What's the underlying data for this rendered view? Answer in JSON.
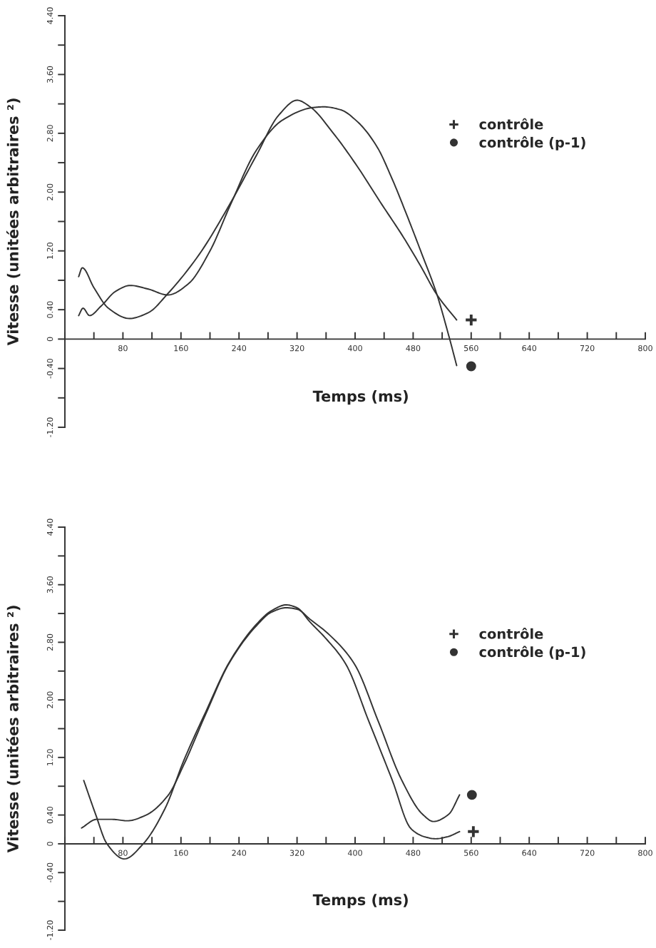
{
  "chart_data": [
    {
      "type": "line",
      "xlabel": "Temps (ms)",
      "ylabel": "Vitesse (unitées arbitraires ²)",
      "xlim": [
        0,
        800
      ],
      "ylim": [
        -1.2,
        4.4
      ],
      "xticks": [
        {
          "value": 0,
          "label": null
        },
        {
          "value": 40,
          "label": null
        },
        80,
        {
          "value": 120,
          "label": null
        },
        160,
        {
          "value": 200,
          "label": null
        },
        240,
        {
          "value": 280,
          "label": null
        },
        320,
        {
          "value": 360,
          "label": null
        },
        400,
        {
          "value": 440,
          "label": null
        },
        480,
        {
          "value": 520,
          "label": null
        },
        560,
        {
          "value": 600,
          "label": null
        },
        640,
        {
          "value": 680,
          "label": null
        },
        720,
        {
          "value": 760,
          "label": null
        },
        800
      ],
      "yticks": [
        {
          "value": -1.2,
          "label": "-1.20"
        },
        {
          "value": -0.8,
          "label": null
        },
        {
          "value": -0.4,
          "label": "-0.40"
        },
        {
          "value": 0,
          "label": "0"
        },
        {
          "value": 0.4,
          "label": "0.40"
        },
        {
          "value": 0.8,
          "label": null
        },
        {
          "value": 1.2,
          "label": "1.20"
        },
        {
          "value": 1.6,
          "label": null
        },
        {
          "value": 2.0,
          "label": "2.00"
        },
        {
          "value": 2.4,
          "label": null
        },
        {
          "value": 2.8,
          "label": "2.80"
        },
        {
          "value": 3.2,
          "label": null
        },
        {
          "value": 3.6,
          "label": "3.60"
        },
        {
          "value": 4.0,
          "label": null
        },
        {
          "value": 4.4,
          "label": "4.40"
        }
      ],
      "grid": false,
      "legend": "top right",
      "series": [
        {
          "color": "#333333",
          "marker": "none",
          "x": [
            19,
            24,
            40,
            60,
            89,
            115,
            142,
            185,
            227,
            264,
            295,
            320,
            338,
            370,
            403,
            435,
            467,
            490,
            513,
            540
          ],
          "values": [
            0.85,
            0.97,
            0.7,
            0.42,
            0.28,
            0.36,
            0.62,
            1.15,
            1.83,
            2.5,
            3.05,
            3.25,
            3.16,
            2.8,
            2.35,
            1.86,
            1.38,
            1.0,
            0.6,
            0.26
          ]
        },
        {
          "color": "#333333",
          "marker": "none",
          "x": [
            19,
            25,
            34,
            50,
            70,
            90,
            115,
            142,
            170,
            200,
            227,
            264,
            300,
            342,
            357,
            380,
            403,
            430,
            451,
            470,
            490,
            513,
            529,
            540
          ],
          "values": [
            0.32,
            0.42,
            0.32,
            0.45,
            0.65,
            0.73,
            0.68,
            0.6,
            0.75,
            1.2,
            1.8,
            2.57,
            2.98,
            3.15,
            3.16,
            3.12,
            2.96,
            2.62,
            2.18,
            1.72,
            1.21,
            0.6,
            0.05,
            -0.36
          ]
        },
        {
          "type": "scatter",
          "name": "contrôle",
          "color": "#333333",
          "marker": "cross",
          "x": [
            560
          ],
          "values": [
            0.26
          ]
        },
        {
          "type": "scatter",
          "name": "contrôle (p-1)",
          "color": "#333333",
          "marker": "circle",
          "x": [
            560
          ],
          "values": [
            -0.37
          ]
        }
      ]
    },
    {
      "type": "line",
      "xlabel": "Temps (ms)",
      "ylabel": "Vitesse (unitées arbitraires ²)",
      "xlim": [
        0,
        800
      ],
      "ylim": [
        -1.2,
        4.4
      ],
      "xticks": [
        {
          "value": 0,
          "label": null
        },
        {
          "value": 40,
          "label": null
        },
        80,
        {
          "value": 120,
          "label": null
        },
        160,
        {
          "value": 200,
          "label": null
        },
        240,
        {
          "value": 280,
          "label": null
        },
        320,
        {
          "value": 360,
          "label": null
        },
        400,
        {
          "value": 440,
          "label": null
        },
        480,
        {
          "value": 520,
          "label": null
        },
        560,
        {
          "value": 600,
          "label": null
        },
        640,
        {
          "value": 680,
          "label": null
        },
        720,
        {
          "value": 760,
          "label": null
        },
        800
      ],
      "yticks": [
        {
          "value": -1.2,
          "label": "-1.20"
        },
        {
          "value": -0.8,
          "label": null
        },
        {
          "value": -0.4,
          "label": "-0.40"
        },
        {
          "value": 0,
          "label": "0"
        },
        {
          "value": 0.4,
          "label": "0.40"
        },
        {
          "value": 0.8,
          "label": null
        },
        {
          "value": 1.2,
          "label": "1.20"
        },
        {
          "value": 1.6,
          "label": null
        },
        {
          "value": 2.0,
          "label": "2.00"
        },
        {
          "value": 2.4,
          "label": null
        },
        {
          "value": 2.8,
          "label": "2.80"
        },
        {
          "value": 3.2,
          "label": null
        },
        {
          "value": 3.6,
          "label": "3.60"
        },
        {
          "value": 4.0,
          "label": null
        },
        {
          "value": 4.4,
          "label": "4.40"
        }
      ],
      "grid": false,
      "legend": "top right",
      "series": [
        {
          "color": "#333333",
          "marker": "none",
          "x": [
            26,
            42,
            58,
            82,
            108,
            138,
            164,
            194,
            227,
            264,
            285,
            305,
            320,
            338,
            360,
            387,
            419,
            451,
            477,
            495,
            511,
            528,
            544
          ],
          "values": [
            0.88,
            0.42,
            0.0,
            -0.21,
            0.0,
            0.49,
            1.16,
            1.83,
            2.53,
            3.05,
            3.24,
            3.32,
            3.28,
            3.08,
            2.85,
            2.5,
            1.7,
            0.89,
            0.21,
            0.1,
            0.07,
            0.1,
            0.17
          ]
        },
        {
          "color": "#333333",
          "marker": "none",
          "x": [
            23,
            44,
            65,
            86,
            112,
            142,
            164,
            194,
            227,
            264,
            285,
            305,
            320,
            338,
            365,
            399,
            432,
            464,
            493,
            508,
            529,
            544
          ],
          "values": [
            0.22,
            0.34,
            0.34,
            0.32,
            0.4,
            0.67,
            1.1,
            1.8,
            2.52,
            3.03,
            3.22,
            3.28,
            3.26,
            3.12,
            2.9,
            2.5,
            1.7,
            0.89,
            0.41,
            0.31,
            0.41,
            0.68
          ]
        },
        {
          "type": "scatter",
          "name": "contrôle",
          "color": "#333333",
          "marker": "cross",
          "x": [
            563
          ],
          "values": [
            0.17
          ]
        },
        {
          "type": "scatter",
          "name": "contrôle (p-1)",
          "color": "#333333",
          "marker": "circle",
          "x": [
            561
          ],
          "values": [
            0.68
          ]
        }
      ]
    }
  ]
}
